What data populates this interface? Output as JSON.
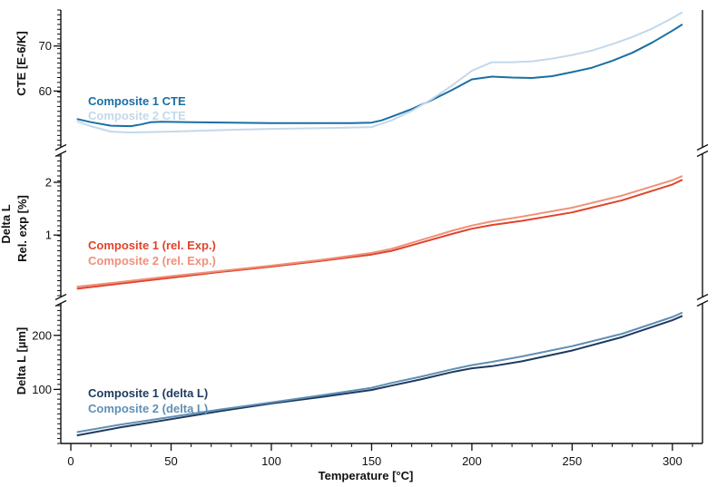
{
  "chart_data": {
    "type": "line",
    "xlabel": "Temperature [°C]",
    "xlim": [
      -5,
      315
    ],
    "x_ticks": [
      0,
      50,
      100,
      150,
      200,
      250,
      300
    ],
    "grid": false,
    "panels": [
      {
        "id": "cte",
        "ylabel": "CTE [E-6/K]",
        "ylim": [
          48,
          78
        ],
        "y_ticks": [
          60,
          70
        ],
        "series": [
          {
            "name": "Composite 1 CTE",
            "color": "#1a6fa3",
            "x": [
              3,
              10,
              20,
              30,
              35,
              40,
              45,
              60,
              80,
              100,
              120,
              140,
              150,
              155,
              160,
              170,
              180,
              190,
              200,
              210,
              220,
              230,
              240,
              250,
              260,
              270,
              280,
              290,
              300,
              305
            ],
            "y": [
              53.8,
              53.1,
              52.3,
              52.2,
              52.6,
              53.1,
              53.2,
              53.1,
              53.0,
              52.9,
              52.9,
              52.9,
              53.0,
              53.5,
              54.3,
              56.0,
              58.0,
              60.2,
              62.6,
              63.2,
              63.0,
              62.9,
              63.3,
              64.2,
              65.2,
              66.7,
              68.5,
              70.8,
              73.4,
              74.8
            ]
          },
          {
            "name": "Composite 2 CTE",
            "color": "#c4d8ea",
            "x": [
              3,
              10,
              20,
              30,
              50,
              80,
              100,
              130,
              150,
              160,
              170,
              180,
              190,
              200,
              210,
              220,
              230,
              240,
              250,
              260,
              270,
              280,
              290,
              300,
              305
            ],
            "y": [
              53.3,
              52.2,
              51.0,
              50.8,
              51.0,
              51.4,
              51.6,
              51.8,
              52.0,
              53.5,
              55.6,
              58.2,
              61.2,
              64.5,
              66.4,
              66.4,
              66.6,
              67.2,
              68.0,
              69.0,
              70.4,
              72.0,
              73.9,
              76.2,
              77.5
            ]
          }
        ]
      },
      {
        "id": "rel_exp",
        "ylabel": "Delta L\nRel. exp [%]",
        "ylim": [
          -0.15,
          2.5
        ],
        "y_ticks": [
          1.0,
          2.0
        ],
        "series": [
          {
            "name": "Composite 1 (rel. Exp.)",
            "color": "#e0442b",
            "x": [
              3,
              25,
              50,
              75,
              100,
              125,
              150,
              160,
              175,
              190,
              200,
              210,
              225,
              250,
              275,
              300,
              305
            ],
            "y": [
              -0.02,
              0.08,
              0.19,
              0.3,
              0.4,
              0.51,
              0.63,
              0.7,
              0.86,
              1.02,
              1.12,
              1.19,
              1.27,
              1.43,
              1.66,
              1.96,
              2.05
            ]
          },
          {
            "name": "Composite 2 (rel. Exp.)",
            "color": "#f0907a",
            "x": [
              3,
              25,
              50,
              75,
              100,
              125,
              150,
              160,
              175,
              190,
              200,
              210,
              225,
              250,
              275,
              300,
              305
            ],
            "y": [
              0.02,
              0.11,
              0.22,
              0.32,
              0.42,
              0.53,
              0.66,
              0.74,
              0.91,
              1.08,
              1.18,
              1.26,
              1.35,
              1.52,
              1.75,
              2.04,
              2.12
            ]
          }
        ]
      },
      {
        "id": "delta_l",
        "ylabel": "Delta L [µm]",
        "ylim": [
          0,
          255
        ],
        "y_ticks": [
          100,
          200
        ],
        "series": [
          {
            "name": "Composite 1 (delta L)",
            "color": "#1e3a5f",
            "x": [
              3,
              25,
              50,
              75,
              100,
              125,
              150,
              160,
              175,
              190,
              200,
              210,
              225,
              250,
              275,
              300,
              305
            ],
            "y": [
              15,
              30,
              45,
              60,
              74,
              86,
              99,
              107,
              119,
              132,
              139,
              143,
              152,
              172,
              197,
              228,
              236
            ]
          },
          {
            "name": "Composite 2 (delta L)",
            "color": "#5f8fb4",
            "x": [
              3,
              25,
              50,
              75,
              100,
              125,
              150,
              160,
              175,
              190,
              200,
              210,
              225,
              250,
              275,
              300,
              305
            ],
            "y": [
              21,
              35,
              49,
              63,
              76,
              89,
              103,
              112,
              124,
              137,
              145,
              151,
              161,
              180,
              203,
              234,
              242
            ]
          }
        ]
      }
    ]
  }
}
